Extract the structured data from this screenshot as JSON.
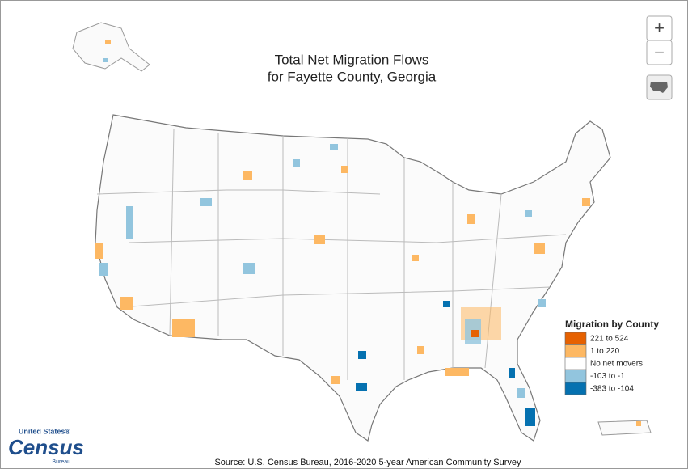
{
  "header": {
    "title": [
      "Total Net Migration Flows",
      "for Fayette County, Georgia"
    ]
  },
  "controls": {
    "zoom_in": "+",
    "zoom_out": "−"
  },
  "legend": {
    "title": "Migration by County",
    "items": [
      {
        "label": "221 to 524",
        "color": "#e66101"
      },
      {
        "label": "1 to 220",
        "color": "#fdb863"
      },
      {
        "label": "No net movers",
        "color": "#ffffff"
      },
      {
        "label": "-103 to -1",
        "color": "#92c5de"
      },
      {
        "label": "-383 to -104",
        "color": "#0571b0"
      }
    ]
  },
  "source": "Source: U.S. Census Bureau, 2016-2020 5-year American Community Survey",
  "logo": {
    "top": "United States®",
    "main": "Census",
    "sub": "Bureau"
  }
}
